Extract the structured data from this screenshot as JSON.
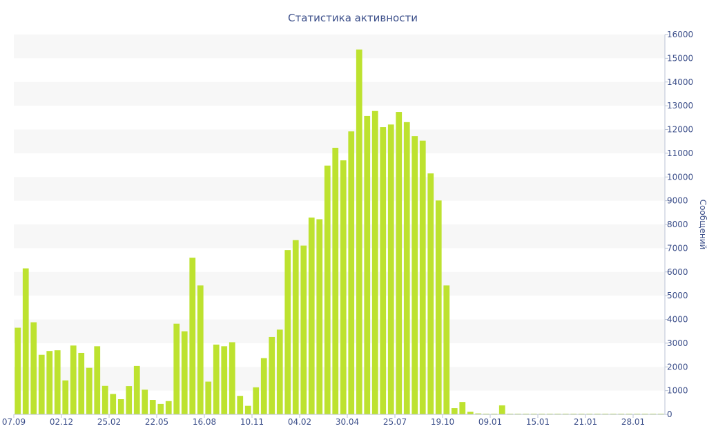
{
  "chart_data": {
    "type": "bar",
    "title": "Статистика активности",
    "xlabel": "",
    "ylabel": "Сообщений",
    "y_axis_side": "right",
    "ylim": [
      0,
      16000
    ],
    "y_ticks": [
      0,
      1000,
      2000,
      3000,
      4000,
      5000,
      6000,
      7000,
      8000,
      9000,
      10000,
      11000,
      12000,
      13000,
      14000,
      15000,
      16000
    ],
    "x_tick_labels": [
      {
        "label": "07.09",
        "index": 0
      },
      {
        "label": "02.12",
        "index": 6
      },
      {
        "label": "25.02",
        "index": 12
      },
      {
        "label": "22.05",
        "index": 18
      },
      {
        "label": "16.08",
        "index": 24
      },
      {
        "label": "10.11",
        "index": 30
      },
      {
        "label": "04.02",
        "index": 36
      },
      {
        "label": "30.04",
        "index": 42
      },
      {
        "label": "25.07",
        "index": 48
      },
      {
        "label": "19.10",
        "index": 54
      },
      {
        "label": "09.01",
        "index": 60
      },
      {
        "label": "15.01",
        "index": 66
      },
      {
        "label": "21.01",
        "index": 72
      },
      {
        "label": "28.01",
        "index": 78
      }
    ],
    "grid": "alternating horizontal bands",
    "bar_color": "#bde22f",
    "band_color": "#f7f7f7",
    "text_color": "#3c4f8a",
    "values": [
      3650,
      6150,
      3880,
      2510,
      2670,
      2700,
      1430,
      2900,
      2590,
      1960,
      2870,
      1200,
      860,
      640,
      1190,
      2040,
      1040,
      610,
      440,
      560,
      3820,
      3500,
      6600,
      5430,
      1380,
      2940,
      2870,
      3040,
      780,
      360,
      1140,
      2370,
      3260,
      3570,
      6920,
      7340,
      7110,
      8290,
      8220,
      10480,
      11230,
      10700,
      11920,
      15370,
      12570,
      12780,
      12100,
      12210,
      12740,
      12310,
      11720,
      11530,
      10150,
      9010,
      5430,
      260,
      520,
      110,
      40,
      30,
      30,
      380,
      30,
      30,
      30,
      30,
      30,
      30,
      30,
      30,
      30,
      30,
      30,
      30,
      30,
      30,
      30,
      30,
      30,
      30,
      30,
      30
    ]
  }
}
